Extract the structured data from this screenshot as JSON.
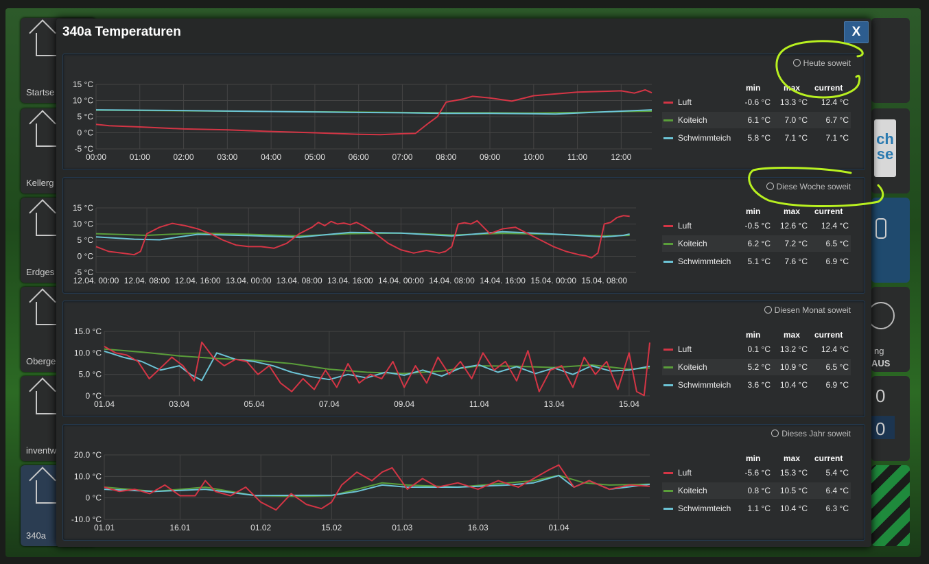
{
  "background": {
    "left_tiles": [
      "Startse",
      "Kellerg",
      "Erdges",
      "Oberge",
      "inventw",
      "340a"
    ],
    "right_tiles": {
      "glyphs": [
        "0",
        "0"
      ],
      "text1": "ng",
      "text2": "AUS"
    }
  },
  "modal": {
    "title": "340a Temperaturen",
    "close_label": "X"
  },
  "legend_headers": {
    "min": "min",
    "max": "max",
    "current": "current"
  },
  "colors": {
    "Luft": "#d43545",
    "Koiteich": "#5a9e3a",
    "Schwimmteich": "#6cc4d6"
  },
  "panels": [
    {
      "period": "Heute soweit",
      "stats": [
        {
          "name": "Luft",
          "min": "-0.6 °C",
          "max": "13.3 °C",
          "current": "12.4 °C"
        },
        {
          "name": "Koiteich",
          "min": "6.1 °C",
          "max": "7.0 °C",
          "current": "6.7 °C"
        },
        {
          "name": "Schwimmteich",
          "min": "5.8 °C",
          "max": "7.1 °C",
          "current": "7.1 °C"
        }
      ],
      "chart_data": {
        "type": "line",
        "title": "Heute soweit",
        "ylim": [
          -5,
          15
        ],
        "y_ticks": [
          "15 °C",
          "10 °C",
          "5 °C",
          "0 °C",
          "-5 °C"
        ],
        "y_tick_values": [
          15,
          10,
          5,
          0,
          -5
        ],
        "x_range": [
          0,
          12.7
        ],
        "x_ticks": [
          "00:00",
          "01:00",
          "02:00",
          "03:00",
          "04:00",
          "05:00",
          "06:00",
          "07:00",
          "08:00",
          "09:00",
          "10:00",
          "11:00",
          "12:00"
        ],
        "x_tick_values": [
          0,
          1,
          2,
          3,
          4,
          5,
          6,
          7,
          8,
          9,
          10,
          11,
          12
        ],
        "series": [
          {
            "name": "Luft",
            "x": [
              0,
              0.3,
              1,
              2,
              3,
              4,
              5,
              6,
              6.5,
              7,
              7.3,
              7.6,
              7.8,
              8,
              8.4,
              8.6,
              9,
              9.5,
              10,
              11,
              12,
              12.3,
              12.55,
              12.7
            ],
            "y": [
              2.6,
              2.2,
              1.8,
              1.2,
              0.9,
              0.4,
              0,
              -0.5,
              -0.6,
              -0.3,
              -0.2,
              3,
              5,
              9.5,
              10.5,
              11.3,
              10.8,
              9.8,
              11.5,
              12.6,
              13.0,
              12.3,
              13.3,
              12.4
            ]
          },
          {
            "name": "Koiteich",
            "x": [
              0,
              2,
              4,
              6,
              7,
              8,
              9,
              10,
              11,
              12,
              12.7
            ],
            "y": [
              7.0,
              6.8,
              6.6,
              6.4,
              6.3,
              6.2,
              6.2,
              6.1,
              6.3,
              6.6,
              6.7
            ]
          },
          {
            "name": "Schwimmteich",
            "x": [
              0,
              2,
              4,
              6,
              7,
              8,
              9,
              10,
              10.5,
              11,
              12,
              12.7
            ],
            "y": [
              7.1,
              6.9,
              6.6,
              6.3,
              6.2,
              6.0,
              6.0,
              5.9,
              5.8,
              6.1,
              6.7,
              7.1
            ]
          }
        ]
      }
    },
    {
      "period": "Diese Woche soweit",
      "stats": [
        {
          "name": "Luft",
          "min": "-0.5 °C",
          "max": "12.6 °C",
          "current": "12.4 °C"
        },
        {
          "name": "Koiteich",
          "min": "6.2 °C",
          "max": "7.2 °C",
          "current": "6.5 °C"
        },
        {
          "name": "Schwimmteich",
          "min": "5.1 °C",
          "max": "7.6 °C",
          "current": "6.9 °C"
        }
      ],
      "chart_data": {
        "type": "line",
        "title": "Diese Woche soweit",
        "ylim": [
          -5,
          15
        ],
        "y_ticks": [
          "15 °C",
          "10 °C",
          "5 °C",
          "0 °C",
          "-5 °C"
        ],
        "y_tick_values": [
          15,
          10,
          5,
          0,
          -5
        ],
        "x_range": [
          0,
          85
        ],
        "x_ticks": [
          "12.04. 00:00",
          "12.04. 08:00",
          "12.04. 16:00",
          "13.04. 00:00",
          "13.04. 08:00",
          "13.04. 16:00",
          "14.04. 00:00",
          "14.04. 08:00",
          "14.04. 16:00",
          "15.04. 00:00",
          "15.04. 08:00"
        ],
        "x_tick_values": [
          0,
          8,
          16,
          24,
          32,
          40,
          48,
          56,
          64,
          72,
          80
        ],
        "series": [
          {
            "name": "Luft",
            "x": [
              0,
              2,
              4,
              6,
              7,
              8,
              10,
              12,
              14,
              16,
              18,
              20,
              22,
              24,
              26,
              28,
              30,
              32,
              34,
              35,
              36,
              37,
              38,
              39,
              40,
              41,
              42,
              44,
              46,
              48,
              50,
              52,
              54,
              55,
              56,
              57,
              58,
              59,
              60,
              61,
              62,
              64,
              66,
              68,
              70,
              72,
              74,
              76,
              77,
              78,
              79,
              80,
              81,
              82,
              83,
              84
            ],
            "y": [
              3,
              1.5,
              1,
              0.5,
              1.5,
              7,
              9,
              10.2,
              9.5,
              8.5,
              7,
              5,
              3.5,
              3,
              3,
              2.5,
              4,
              7,
              9,
              10.5,
              9.5,
              10.8,
              10,
              10.3,
              9.8,
              10.5,
              9.5,
              7,
              4,
              2,
              1,
              1.8,
              1,
              1.5,
              3,
              10,
              10.4,
              10,
              11,
              9,
              7,
              8.5,
              9,
              7,
              5,
              3,
              1.5,
              0.5,
              0.2,
              -0.5,
              1,
              10,
              10.5,
              12,
              12.6,
              12.4
            ]
          },
          {
            "name": "Koiteich",
            "x": [
              0,
              8,
              16,
              24,
              32,
              40,
              48,
              56,
              64,
              72,
              80,
              84
            ],
            "y": [
              7.0,
              6.5,
              7.2,
              6.8,
              6.3,
              7.0,
              7.2,
              6.6,
              7.1,
              6.8,
              6.3,
              6.5
            ]
          },
          {
            "name": "Schwimmteich",
            "x": [
              0,
              6,
              10,
              16,
              24,
              32,
              40,
              48,
              56,
              64,
              72,
              80,
              83,
              84
            ],
            "y": [
              6.0,
              5.3,
              5.1,
              6.8,
              6.4,
              5.9,
              7.4,
              7.2,
              6.3,
              7.6,
              6.9,
              6.0,
              6.5,
              6.9
            ]
          }
        ]
      }
    },
    {
      "period": "Diesen Monat soweit",
      "stats": [
        {
          "name": "Luft",
          "min": "0.1 °C",
          "max": "13.2 °C",
          "current": "12.4 °C"
        },
        {
          "name": "Koiteich",
          "min": "5.2 °C",
          "max": "10.9 °C",
          "current": "6.5 °C"
        },
        {
          "name": "Schwimmteich",
          "min": "3.6 °C",
          "max": "10.4 °C",
          "current": "6.9 °C"
        }
      ],
      "chart_data": {
        "type": "line",
        "title": "Diesen Monat soweit",
        "ylim": [
          0,
          15
        ],
        "y_ticks": [
          "15.0 °C",
          "10.0 °C",
          "5.0 °C",
          "0 °C"
        ],
        "y_tick_values": [
          15,
          10,
          5,
          0
        ],
        "x_range": [
          1,
          15.55
        ],
        "x_ticks": [
          "01.04",
          "03.04",
          "05.04",
          "07.04",
          "09.04",
          "11.04",
          "13.04",
          "15.04"
        ],
        "x_tick_values": [
          1,
          3,
          5,
          7,
          9,
          11,
          13,
          15
        ],
        "series": [
          {
            "name": "Luft",
            "x": [
              1,
              1.3,
              1.6,
              1.9,
              2.2,
              2.5,
              2.8,
              3.1,
              3.4,
              3.6,
              3.9,
              4.2,
              4.5,
              4.8,
              5.1,
              5.4,
              5.7,
              6,
              6.3,
              6.6,
              6.9,
              7.2,
              7.5,
              7.8,
              8.1,
              8.4,
              8.7,
              9,
              9.3,
              9.6,
              9.9,
              10.2,
              10.5,
              10.8,
              11.1,
              11.4,
              11.7,
              12,
              12.3,
              12.6,
              12.9,
              13.2,
              13.5,
              13.8,
              14.1,
              14.4,
              14.7,
              15,
              15.2,
              15.4,
              15.55
            ],
            "y": [
              11.5,
              10,
              9.5,
              8,
              4,
              6.5,
              9,
              7,
              3.5,
              12.5,
              9,
              7,
              8.5,
              8,
              5,
              7,
              3,
              1,
              4,
              1.5,
              6,
              2,
              7.5,
              3,
              5,
              4,
              8,
              2,
              7,
              3,
              9,
              5,
              8,
              4,
              10,
              6,
              8,
              3.5,
              10.5,
              1,
              6,
              7,
              2,
              9,
              5,
              8,
              1.5,
              10,
              1,
              0.1,
              12.4
            ]
          },
          {
            "name": "Koiteich",
            "x": [
              1,
              2,
              3,
              4,
              5,
              6,
              7,
              8,
              9,
              10,
              11,
              12,
              13,
              14,
              15,
              15.55
            ],
            "y": [
              10.9,
              10.2,
              9.3,
              8.7,
              8.3,
              7.5,
              6.2,
              5.5,
              5.2,
              5.8,
              7.0,
              6.9,
              6.6,
              7.2,
              6.2,
              6.5
            ]
          },
          {
            "name": "Schwimmteich",
            "x": [
              1,
              1.5,
              2,
              2.5,
              3,
              3.3,
              3.6,
              4,
              4.5,
              5,
              5.5,
              6,
              6.5,
              7,
              7.5,
              8,
              8.5,
              9,
              9.5,
              10,
              10.5,
              11,
              11.5,
              12,
              12.5,
              13,
              13.5,
              14,
              14.5,
              15,
              15.55
            ],
            "y": [
              10.4,
              9,
              8,
              6,
              7,
              5,
              3.6,
              10,
              8.5,
              8,
              7,
              5.5,
              4.5,
              3.8,
              5,
              4.2,
              5.5,
              4.8,
              6,
              4.6,
              6.5,
              7.2,
              5.5,
              6.8,
              5.2,
              6.5,
              5,
              7,
              5.8,
              6,
              6.9
            ]
          }
        ]
      }
    },
    {
      "period": "Dieses Jahr soweit",
      "stats": [
        {
          "name": "Luft",
          "min": "-5.6 °C",
          "max": "15.3 °C",
          "current": "5.4 °C"
        },
        {
          "name": "Koiteich",
          "min": "0.8 °C",
          "max": "10.5 °C",
          "current": "6.4 °C"
        },
        {
          "name": "Schwimmteich",
          "min": "1.1 °C",
          "max": "10.4 °C",
          "current": "6.3 °C"
        }
      ],
      "chart_data": {
        "type": "line",
        "title": "Dieses Jahr soweit",
        "ylim": [
          -10,
          20
        ],
        "y_ticks": [
          "20.0 °C",
          "10.0 °C",
          "0 °C",
          "-10.0 °C"
        ],
        "y_tick_values": [
          20,
          10,
          0,
          -10
        ],
        "x_range": [
          0,
          108
        ],
        "x_ticks": [
          "01.01",
          "16.01",
          "01.02",
          "15.02",
          "01.03",
          "16.03",
          "01.04"
        ],
        "x_tick_values": [
          0,
          15,
          31,
          45,
          59,
          74,
          90
        ],
        "series": [
          {
            "name": "Luft",
            "x": [
              0,
              3,
              6,
              9,
              12,
              15,
              18,
              20,
              22,
              25,
              28,
              31,
              34,
              37,
              40,
              43,
              45,
              47,
              50,
              53,
              55,
              57,
              60,
              63,
              66,
              70,
              74,
              78,
              82,
              85,
              88,
              90,
              93,
              96,
              100,
              104,
              108
            ],
            "y": [
              5,
              3,
              4,
              2,
              6,
              1,
              1,
              8,
              3,
              1,
              5,
              -2,
              -5.6,
              2,
              -3,
              -5,
              -2,
              6,
              12,
              8,
              12,
              14,
              4,
              9,
              5,
              7,
              4,
              8,
              5,
              9,
              13,
              15.3,
              5,
              8,
              4,
              6,
              5.4
            ]
          },
          {
            "name": "Koiteich",
            "x": [
              0,
              10,
              20,
              30,
              40,
              45,
              50,
              55,
              60,
              70,
              80,
              85,
              90,
              95,
              100,
              108
            ],
            "y": [
              5,
              3,
              5,
              1,
              0.8,
              1,
              4,
              7,
              6,
              5,
              7,
              8,
              10.5,
              7,
              6,
              6.4
            ]
          },
          {
            "name": "Schwimmteich",
            "x": [
              0,
              10,
              20,
              30,
              40,
              45,
              50,
              55,
              60,
              70,
              80,
              85,
              90,
              93,
              96,
              100,
              108
            ],
            "y": [
              4,
              3,
              4,
              1.1,
              1.2,
              1.2,
              3,
              6,
              5,
              5,
              6,
              7,
              10.4,
              5,
              8,
              4,
              6.3
            ]
          }
        ]
      }
    }
  ]
}
